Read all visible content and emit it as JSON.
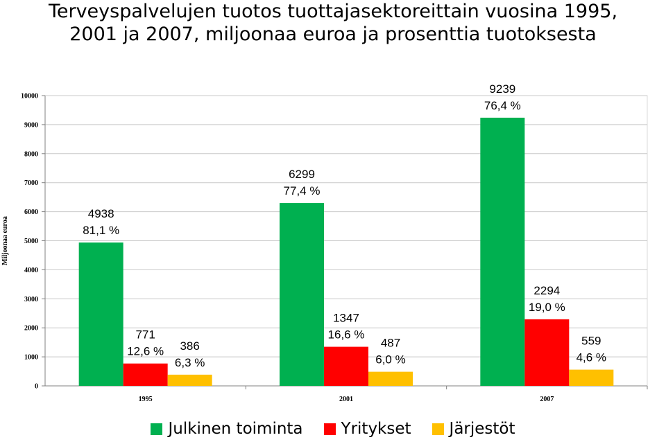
{
  "chart_data": {
    "type": "bar",
    "title": "Terveyspalvelujen tuotos tuottajasektoreittain vuosina 1995, 2001 ja 2007, miljoonaa euroa ja prosenttia tuotoksesta",
    "title_lines": [
      "Terveyspalvelujen tuotos tuottajasektoreittain vuosina 1995,",
      "2001 ja 2007, miljoonaa euroa ja prosenttia tuotoksesta"
    ],
    "ylabel": "Miljoonaa euroa",
    "xlabel": "",
    "ylim": [
      0,
      10000
    ],
    "yticks": [
      0,
      1000,
      2000,
      3000,
      4000,
      5000,
      6000,
      7000,
      8000,
      9000,
      10000
    ],
    "categories": [
      "1995",
      "2001",
      "2007"
    ],
    "grid": true,
    "legend_position": "bottom",
    "series": [
      {
        "name": "Julkinen toiminta",
        "color": "#00b050",
        "values": [
          4938,
          6299,
          9239
        ],
        "value_labels": [
          "4938",
          "6299",
          "9239"
        ],
        "percent_labels": [
          "81,1 %",
          "77,4 %",
          "76,4 %"
        ]
      },
      {
        "name": "Yritykset",
        "color": "#ff0000",
        "values": [
          771,
          1347,
          2294
        ],
        "value_labels": [
          "771",
          "1347",
          "2294"
        ],
        "percent_labels": [
          "12,6 %",
          "16,6 %",
          "19,0 %"
        ]
      },
      {
        "name": "Järjestöt",
        "color": "#ffc000",
        "values": [
          386,
          487,
          559
        ],
        "value_labels": [
          "386",
          "487",
          "559"
        ],
        "percent_labels": [
          "6,3 %",
          "6,0 %",
          "4,6 %"
        ]
      }
    ]
  }
}
